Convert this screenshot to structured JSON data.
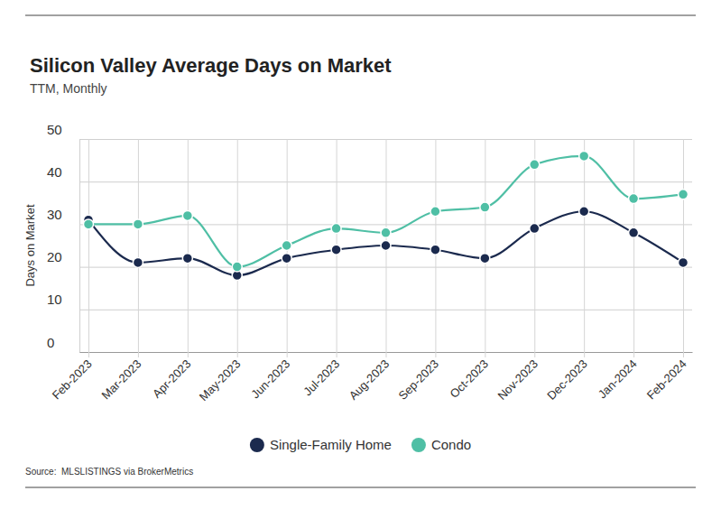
{
  "chart_data": {
    "type": "line",
    "title": "Silicon Valley Average Days on Market",
    "subtitle": "TTM, Monthly",
    "y_label": "Days on Market",
    "source": "Source:  MLSLISTINGS via BrokerMetrics",
    "categories": [
      "Feb-2023",
      "Mar-2023",
      "Apr-2023",
      "May-2023",
      "Jun-2023",
      "Jul-2023",
      "Aug-2023",
      "Sep-2023",
      "Oct-2023",
      "Nov-2023",
      "Dec-2023",
      "Jan-2024",
      "Feb-2024"
    ],
    "series": [
      {
        "name": "Single-Family Home",
        "color": "#1b2a4e",
        "marker": "circle",
        "values": [
          31,
          21,
          22,
          18,
          22,
          24,
          25,
          24,
          22,
          29,
          33,
          28,
          21
        ]
      },
      {
        "name": "Condo",
        "color": "#4fbfa5",
        "marker": "circle",
        "values": [
          30,
          30,
          32,
          20,
          25,
          29,
          28,
          33,
          34,
          44,
          46,
          36,
          37
        ]
      }
    ],
    "ylim": [
      0,
      50
    ],
    "yticks": [
      0,
      10,
      20,
      30,
      40,
      50
    ],
    "grid": true,
    "legend": "bottom"
  }
}
